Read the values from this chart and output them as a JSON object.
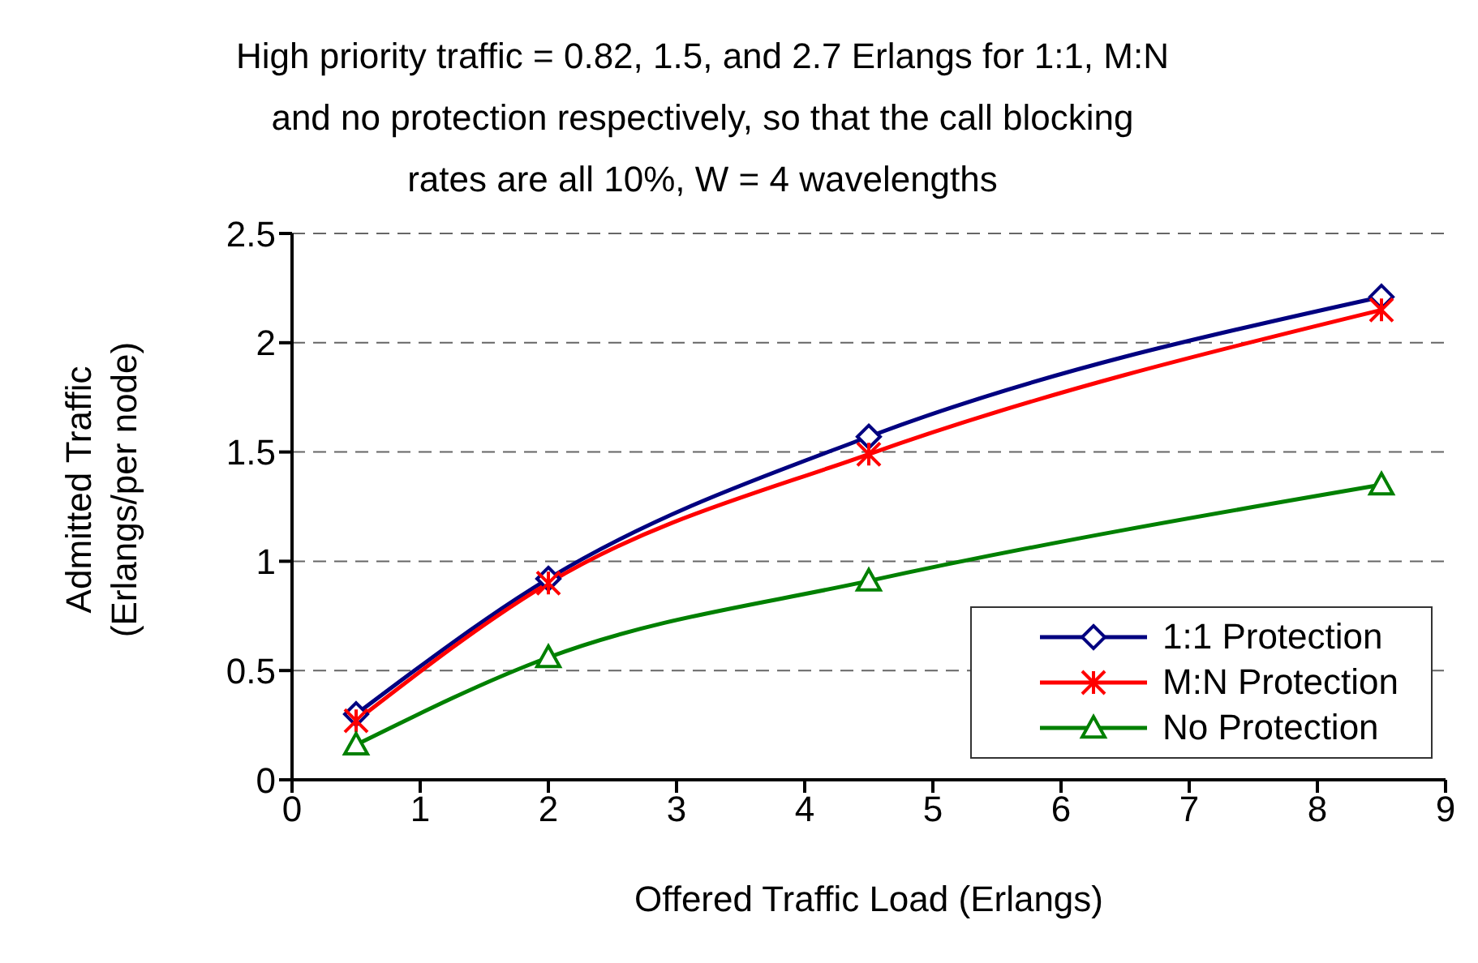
{
  "chart_data": {
    "type": "line",
    "title": "High priority traffic = 0.82, 1.5, and 2.7 Erlangs for 1:1, M:N and no protection respectively, so that the call blocking rates are all 10%, W = 4 wavelengths",
    "xlabel": "Offered Traffic Load (Erlangs)",
    "ylabel": "Admitted Traffic (Erlangs/per node)",
    "x": [
      0.5,
      2,
      4.5,
      8.5
    ],
    "series": [
      {
        "name": "1:1 Protection",
        "color": "#000080",
        "marker": "diamond",
        "values": [
          0.3,
          0.92,
          1.57,
          2.21
        ]
      },
      {
        "name": "M:N Protection",
        "color": "#ff0000",
        "marker": "cross",
        "values": [
          0.27,
          0.9,
          1.49,
          2.15
        ]
      },
      {
        "name": "No Protection",
        "color": "#008000",
        "marker": "triangle",
        "values": [
          0.16,
          0.56,
          0.91,
          1.35
        ]
      }
    ],
    "xlim": [
      0,
      9
    ],
    "xticks": [
      0,
      1,
      2,
      3,
      4,
      5,
      6,
      7,
      8,
      9
    ],
    "ylim": [
      0,
      2.5
    ],
    "yticks": [
      0,
      0.5,
      1,
      1.5,
      2,
      2.5
    ],
    "grid": "y",
    "legend": "bottom right",
    "line_style": "solid"
  }
}
